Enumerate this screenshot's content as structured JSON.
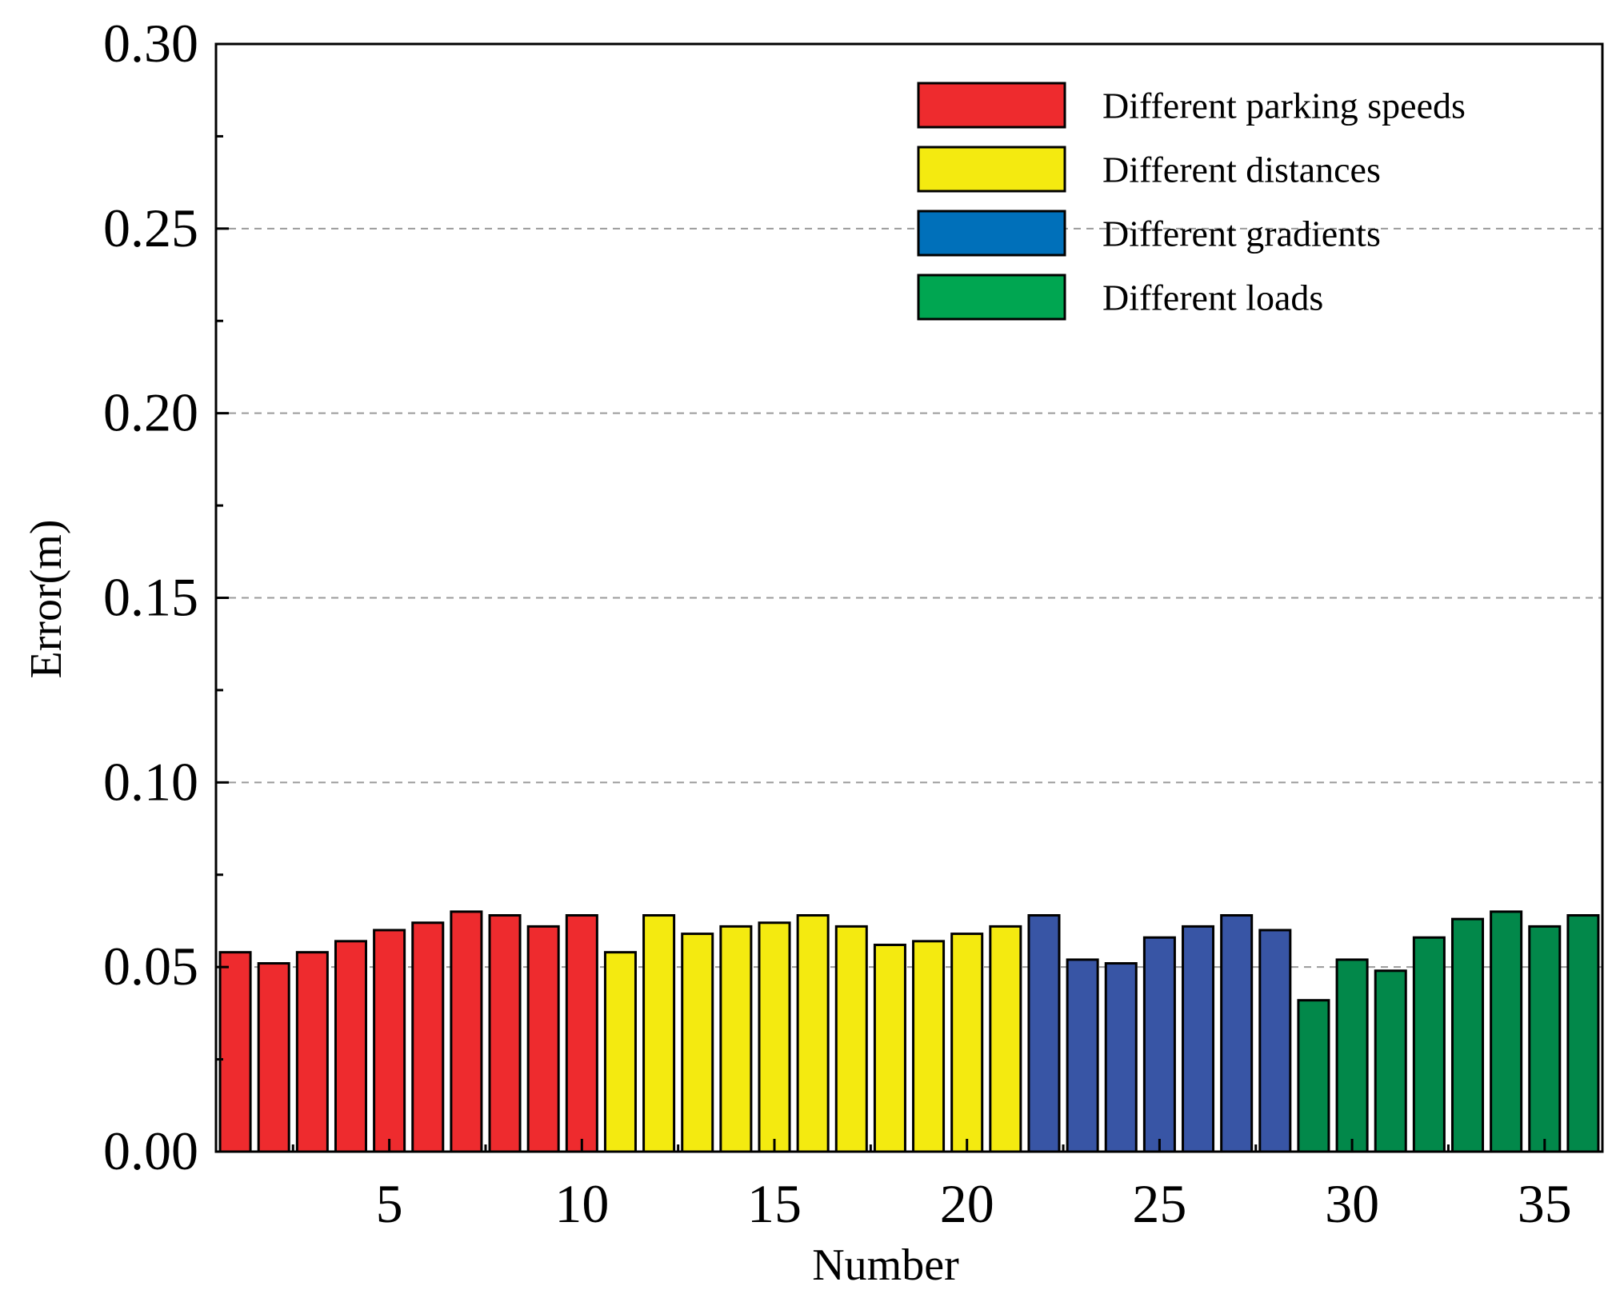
{
  "chart_data": {
    "type": "bar",
    "title": "",
    "xlabel": "Number",
    "ylabel": "Error(m)",
    "xlim": [
      0.5,
      36.5
    ],
    "ylim": [
      0,
      0.3
    ],
    "x_ticks": [
      5,
      10,
      15,
      20,
      25,
      30,
      35
    ],
    "x_tick_labels": [
      "5",
      "10",
      "15",
      "20",
      "25",
      "30",
      "35"
    ],
    "y_ticks": [
      0,
      0.05,
      0.1,
      0.15,
      0.2,
      0.25,
      0.3
    ],
    "y_tick_labels": [
      "0.00",
      "0.05",
      "0.10",
      "0.15",
      "0.20",
      "0.25",
      "0.30"
    ],
    "grid": "horizontal dashed",
    "legend_position": "top-right",
    "series": [
      {
        "name": "Different parking speeds",
        "legend_color": "#EE2B2E",
        "bar_color": "#EE2B2E",
        "x": [
          1,
          2,
          3,
          4,
          5,
          6,
          7,
          8,
          9,
          10
        ],
        "values": [
          0.054,
          0.051,
          0.054,
          0.057,
          0.06,
          0.062,
          0.065,
          0.064,
          0.061,
          0.064
        ]
      },
      {
        "name": "Different distances",
        "legend_color": "#F4EA10",
        "bar_color": "#F4EA10",
        "x": [
          11,
          12,
          13,
          14,
          15,
          16,
          17,
          18,
          19,
          20,
          21
        ],
        "values": [
          0.054,
          0.064,
          0.059,
          0.061,
          0.062,
          0.064,
          0.061,
          0.056,
          0.057,
          0.059,
          0.061
        ]
      },
      {
        "name": "Different gradients",
        "legend_color": "#0070BA",
        "bar_color": "#3855A5",
        "x": [
          22,
          23,
          24,
          25,
          26,
          27,
          28
        ],
        "values": [
          0.064,
          0.052,
          0.051,
          0.058,
          0.061,
          0.064,
          0.06
        ]
      },
      {
        "name": "Different loads",
        "legend_color": "#00A651",
        "bar_color": "#02884A",
        "x": [
          29,
          30,
          31,
          32,
          33,
          34,
          35,
          36
        ],
        "values": [
          0.041,
          0.052,
          0.049,
          0.058,
          0.063,
          0.065,
          0.061,
          0.064
        ]
      }
    ]
  }
}
